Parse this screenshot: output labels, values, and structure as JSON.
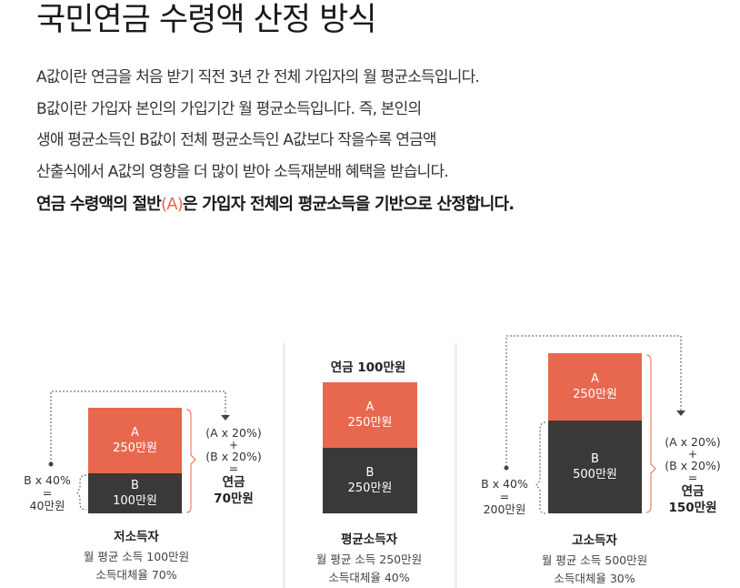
{
  "title": "국민연금 수령액 산정 방식",
  "paragraph": [
    "A값이란 연금을 처음 받기 직전 3년 간 전체 가입자의 월 평균소득입니다.",
    "B값이란 가입자 본인의 가입기간 월 평균소득입니다. 즉, 본인의",
    "생애 평균소득인 B값이 전체 평균소득인 A값보다 작을수록 연금액",
    "산출식에서 A값의 영향을 더 많이 받아 소득재분배 혜택을 받습니다."
  ],
  "emphasis": {
    "before": "연금 수령액의 절반",
    "highlight": "(A)",
    "after": "은 가입자 전체의 평균소득을 기반으로 산정합니다."
  },
  "colors": {
    "a_block": "#e8684f",
    "b_block": "#3b3838",
    "highlight": "#e8634c"
  },
  "diagram": {
    "low": {
      "a_letter": "A",
      "a_value": "250만원",
      "b_letter": "B",
      "b_value": "100만원",
      "left_top": "B x 40%",
      "left_eq": "=",
      "left_value": "40만원",
      "f1": "(A x 20%)",
      "f2": "+",
      "f3": "(B x 20%)",
      "f4": "=",
      "result_label": "연금",
      "result_value": "70만원",
      "name": "저소득자",
      "income": "월 평균 소득 100만원",
      "ratio": "소득대체율 70%"
    },
    "avg": {
      "top_label": "연금 100만원",
      "a_letter": "A",
      "a_value": "250만원",
      "b_letter": "B",
      "b_value": "250만원",
      "name": "평균소득자",
      "income": "월 평균 소득 250만원",
      "ratio": "소득대체율 40%"
    },
    "high": {
      "a_letter": "A",
      "a_value": "250만원",
      "b_letter": "B",
      "b_value": "500만원",
      "left_top": "B x 40%",
      "left_eq": "=",
      "left_value": "200만원",
      "f1": "(A x 20%)",
      "f2": "+",
      "f3": "(B x 20%)",
      "f4": "=",
      "result_label": "연금",
      "result_value": "150만원",
      "name": "고소득자",
      "income": "월 평균 소득 500만원",
      "ratio": "소득대체율 30%"
    }
  }
}
